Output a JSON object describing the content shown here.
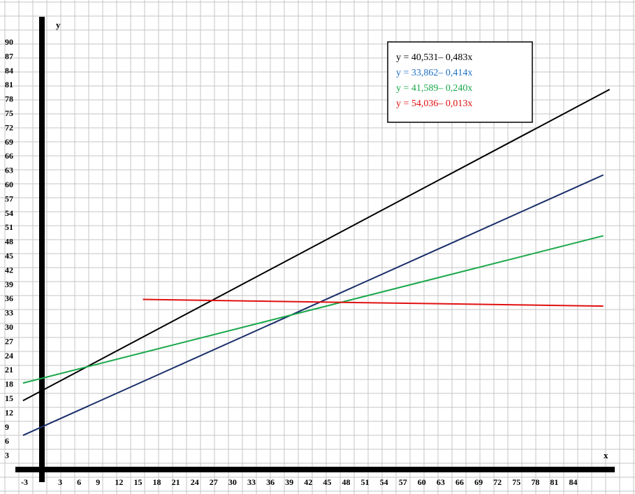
{
  "chart_data": {
    "type": "line",
    "xlabel": "x",
    "ylabel": "y",
    "xlim": [
      -3,
      93
    ],
    "ylim": [
      0,
      96
    ],
    "grid": true,
    "legend_placement": "top-right",
    "x_ticks": [
      {
        "value": -3,
        "label": "-3"
      },
      {
        "value": 3,
        "label": "3"
      },
      {
        "value": 6,
        "label": "6"
      },
      {
        "value": 9,
        "label": "9"
      },
      {
        "value": 12,
        "label": "12"
      },
      {
        "value": 15,
        "label": "15"
      },
      {
        "value": 18,
        "label": "18"
      },
      {
        "value": 21,
        "label": "21"
      },
      {
        "value": 24,
        "label": "24"
      },
      {
        "value": 27,
        "label": "27"
      },
      {
        "value": 30,
        "label": "30"
      },
      {
        "value": 33,
        "label": "33"
      },
      {
        "value": 36,
        "label": "36"
      },
      {
        "value": 39,
        "label": "39"
      },
      {
        "value": 42,
        "label": "42"
      },
      {
        "value": 45,
        "label": "45"
      },
      {
        "value": 48,
        "label": "48"
      },
      {
        "value": 51,
        "label": "51"
      },
      {
        "value": 54,
        "label": "54"
      },
      {
        "value": 57,
        "label": "57"
      },
      {
        "value": 60,
        "label": "60"
      },
      {
        "value": 63,
        "label": "63"
      },
      {
        "value": 66,
        "label": "66"
      },
      {
        "value": 69,
        "label": "69"
      },
      {
        "value": 72,
        "label": "72"
      },
      {
        "value": 75,
        "label": "75"
      },
      {
        "value": 78,
        "label": "78"
      },
      {
        "value": 81,
        "label": "81"
      },
      {
        "value": 84,
        "label": "84"
      }
    ],
    "y_ticks": [
      3,
      6,
      9,
      12,
      15,
      18,
      21,
      24,
      27,
      30,
      33,
      36,
      39,
      42,
      45,
      48,
      51,
      54,
      57,
      60,
      63,
      66,
      69,
      72,
      75,
      78,
      81,
      84,
      87,
      90
    ],
    "legend": [
      {
        "label": "y = 40,531– 0,483x",
        "color": "#000000"
      },
      {
        "label": "y = 33,862– 0,414x",
        "color": "#1f6fc0"
      },
      {
        "label": "y = 41,589– 0,240x",
        "color": "#19a84a"
      },
      {
        "label": "y = 54,036– 0,013x",
        "color": "#e01010"
      }
    ],
    "series": [
      {
        "color": "#000000",
        "x": [
          -3,
          90
        ],
        "y": [
          14.5,
          80
        ]
      },
      {
        "color": "#1a2f6a",
        "x": [
          -3,
          89
        ],
        "y": [
          7.2,
          62
        ]
      },
      {
        "color": "#19a84a",
        "x": [
          -3,
          89
        ],
        "y": [
          18.2,
          49.2
        ]
      },
      {
        "color": "#e01010",
        "x": [
          16,
          89
        ],
        "y": [
          35.8,
          34.4
        ]
      }
    ]
  }
}
